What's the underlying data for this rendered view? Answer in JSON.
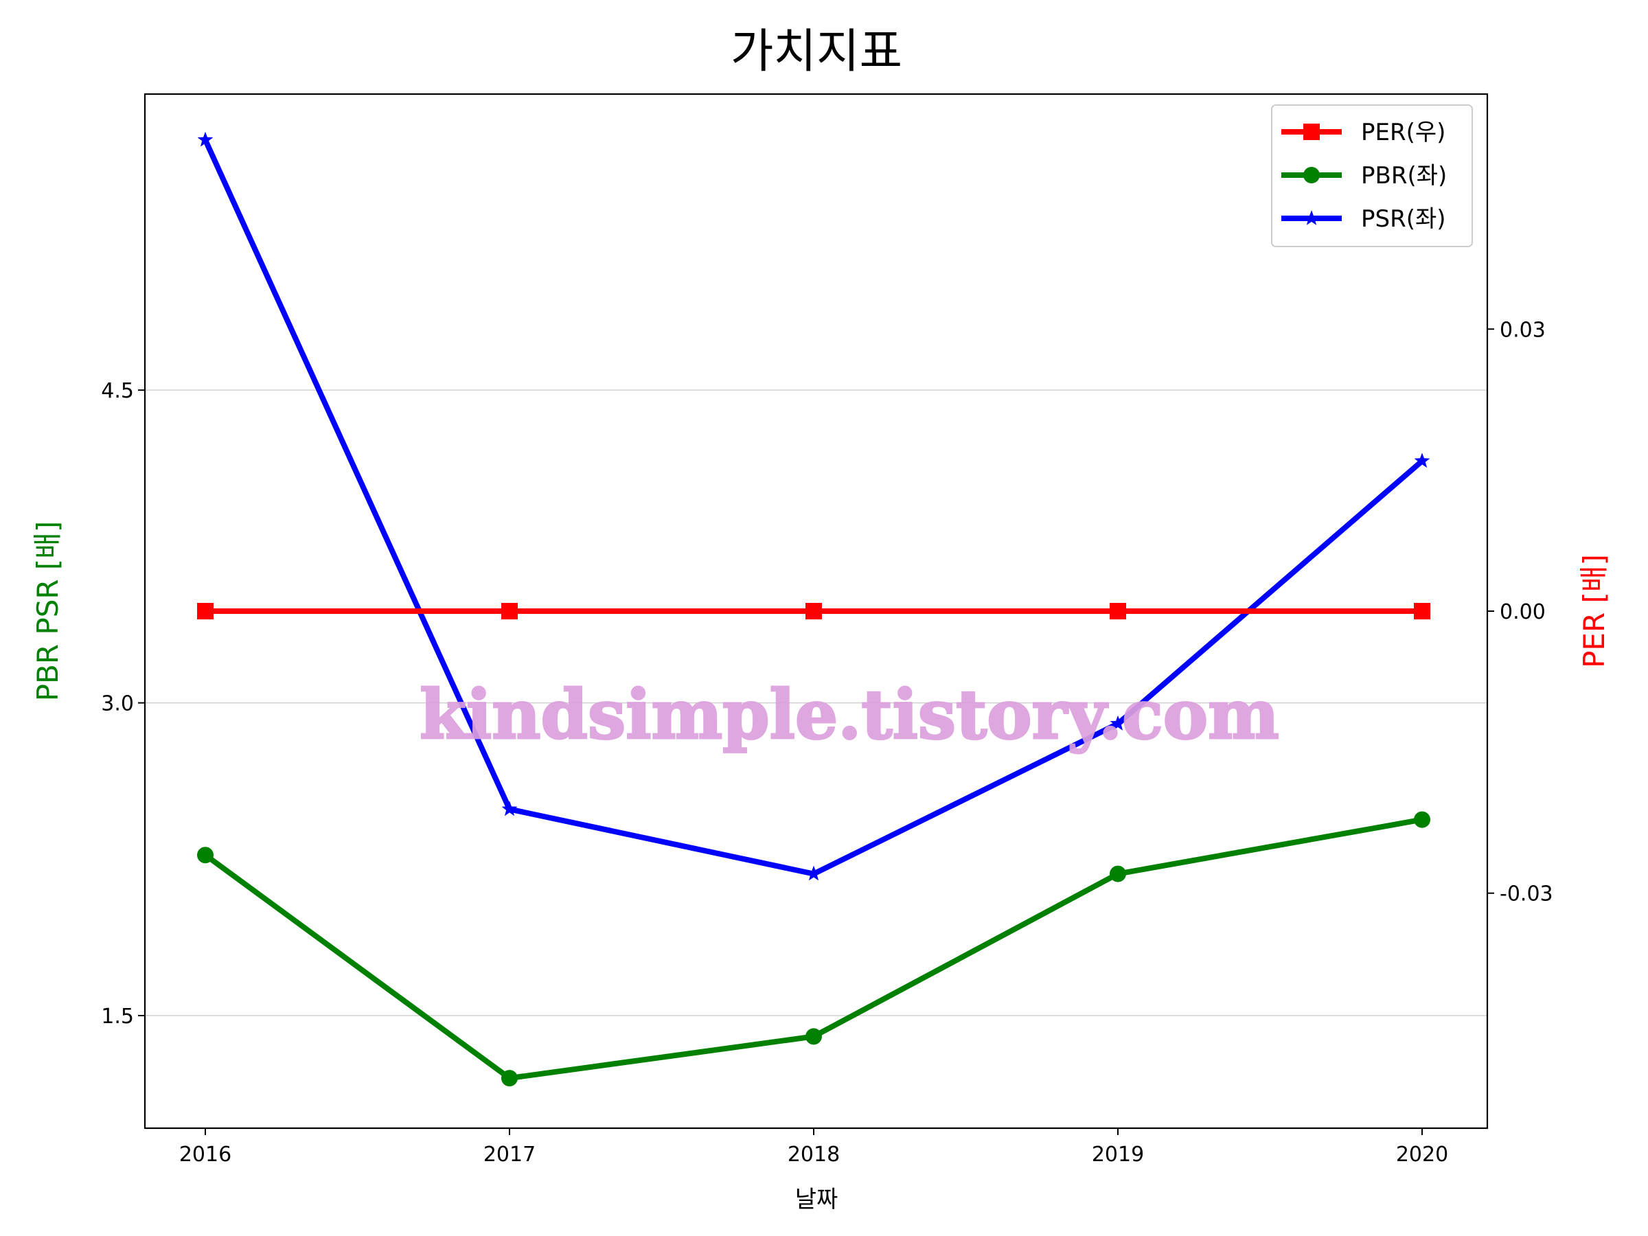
{
  "chart_data": {
    "type": "line",
    "title": "가치지표",
    "xlabel": "날짜",
    "ylabel_left": "PBR PSR [배]",
    "ylabel_right": "PER [배]",
    "categories": [
      "2016",
      "2017",
      "2018",
      "2019",
      "2020"
    ],
    "y_left": {
      "ticks": [
        "1.5",
        "3.0",
        "4.5"
      ],
      "tick_values": [
        1.5,
        3.0,
        4.5
      ],
      "range": [
        0.96,
        5.92
      ]
    },
    "y_right": {
      "ticks": [
        "0.03",
        "0.00",
        "-0.03"
      ],
      "tick_values": [
        0.03,
        0.0,
        -0.03
      ],
      "range": [
        -0.055,
        0.055
      ]
    },
    "series": [
      {
        "name": "PER(우)",
        "axis": "right",
        "color": "#ff0000",
        "marker": "square",
        "values": [
          0,
          0,
          0,
          0,
          0
        ]
      },
      {
        "name": "PBR(좌)",
        "axis": "left",
        "color": "#008000",
        "marker": "circle",
        "values": [
          2.27,
          1.2,
          1.4,
          2.18,
          2.44
        ]
      },
      {
        "name": "PSR(좌)",
        "axis": "left",
        "color": "#0000ff",
        "marker": "star",
        "values": [
          5.7,
          2.49,
          2.18,
          2.9,
          4.16
        ]
      }
    ],
    "grid": "horizontal-left-axis",
    "legend_position": "top-right",
    "watermark": "kindsimple.tistory.com",
    "watermark_color": "#dda0dd"
  }
}
